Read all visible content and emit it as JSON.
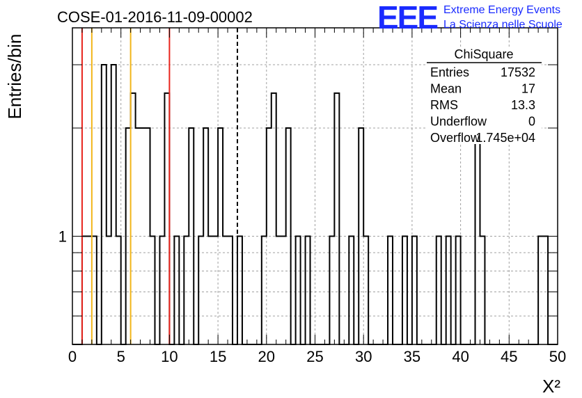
{
  "chart_data": {
    "type": "bar",
    "title": "COSE-01-2016-11-09-00002",
    "xlabel": "X²",
    "ylabel": "Entries/bin",
    "xlim": [
      0,
      50
    ],
    "ylim": [
      0.5,
      3.8
    ],
    "log_y": true,
    "grid": true,
    "x_ticks": [
      "0",
      "5",
      "10",
      "15",
      "20",
      "25",
      "30",
      "35",
      "40",
      "45",
      "50"
    ],
    "y_tick_labels": [
      "1"
    ],
    "bin_width": 0.5,
    "bins": [
      {
        "x0": 1.0,
        "y": 1
      },
      {
        "x0": 1.5,
        "y": 1
      },
      {
        "x0": 2.0,
        "y": 1
      },
      {
        "x0": 3.0,
        "y": 3
      },
      {
        "x0": 3.5,
        "y": 1
      },
      {
        "x0": 4.0,
        "y": 3
      },
      {
        "x0": 4.5,
        "y": 1
      },
      {
        "x0": 5.5,
        "y": 2
      },
      {
        "x0": 6.0,
        "y": 2.5
      },
      {
        "x0": 6.5,
        "y": 2
      },
      {
        "x0": 7.0,
        "y": 2
      },
      {
        "x0": 7.5,
        "y": 2
      },
      {
        "x0": 8.0,
        "y": 1
      },
      {
        "x0": 9.0,
        "y": 1
      },
      {
        "x0": 9.5,
        "y": 2.5
      },
      {
        "x0": 10.5,
        "y": 1
      },
      {
        "x0": 11.5,
        "y": 1
      },
      {
        "x0": 12.0,
        "y": 2
      },
      {
        "x0": 13.0,
        "y": 1
      },
      {
        "x0": 13.5,
        "y": 2
      },
      {
        "x0": 14.0,
        "y": 1
      },
      {
        "x0": 14.5,
        "y": 1
      },
      {
        "x0": 15.0,
        "y": 2
      },
      {
        "x0": 15.5,
        "y": 1
      },
      {
        "x0": 16.0,
        "y": 1
      },
      {
        "x0": 17.0,
        "y": 1
      },
      {
        "x0": 19.5,
        "y": 1
      },
      {
        "x0": 20.0,
        "y": 2
      },
      {
        "x0": 20.5,
        "y": 2.5
      },
      {
        "x0": 21.0,
        "y": 1
      },
      {
        "x0": 21.5,
        "y": 1
      },
      {
        "x0": 22.0,
        "y": 2
      },
      {
        "x0": 23.0,
        "y": 1
      },
      {
        "x0": 24.0,
        "y": 1
      },
      {
        "x0": 26.5,
        "y": 1
      },
      {
        "x0": 27.0,
        "y": 2.5
      },
      {
        "x0": 28.5,
        "y": 1
      },
      {
        "x0": 29.5,
        "y": 2
      },
      {
        "x0": 30.0,
        "y": 1
      },
      {
        "x0": 32.5,
        "y": 1
      },
      {
        "x0": 34.0,
        "y": 1
      },
      {
        "x0": 35.0,
        "y": 1
      },
      {
        "x0": 37.5,
        "y": 1
      },
      {
        "x0": 38.5,
        "y": 1
      },
      {
        "x0": 39.5,
        "y": 1
      },
      {
        "x0": 41.5,
        "y": 2
      },
      {
        "x0": 42.0,
        "y": 1
      },
      {
        "x0": 48.0,
        "y": 1
      },
      {
        "x0": 48.5,
        "y": 1
      }
    ],
    "reference_lines": [
      {
        "x": 1.0,
        "color": "#e8241c",
        "style": "solid"
      },
      {
        "x": 2.0,
        "color": "#f2b61a",
        "style": "solid"
      },
      {
        "x": 6.0,
        "color": "#f2b61a",
        "style": "solid"
      },
      {
        "x": 10.0,
        "color": "#e8241c",
        "style": "solid"
      },
      {
        "x": 17.0,
        "color": "#000000",
        "style": "dashed"
      }
    ],
    "stats_box": {
      "title": "ChiSquare",
      "rows": [
        {
          "label": "Entries",
          "value": "17532"
        },
        {
          "label": "Mean",
          "value": "17"
        },
        {
          "label": "RMS",
          "value": "13.3"
        },
        {
          "label": "Underflow",
          "value": "0"
        },
        {
          "label": "Overflow",
          "value": "1.745e+04"
        }
      ]
    }
  },
  "logo": {
    "text": "EEE",
    "line1": "Extreme Energy Events",
    "line2": "La Scienza nelle Scuole",
    "color": "#1a2bff"
  }
}
